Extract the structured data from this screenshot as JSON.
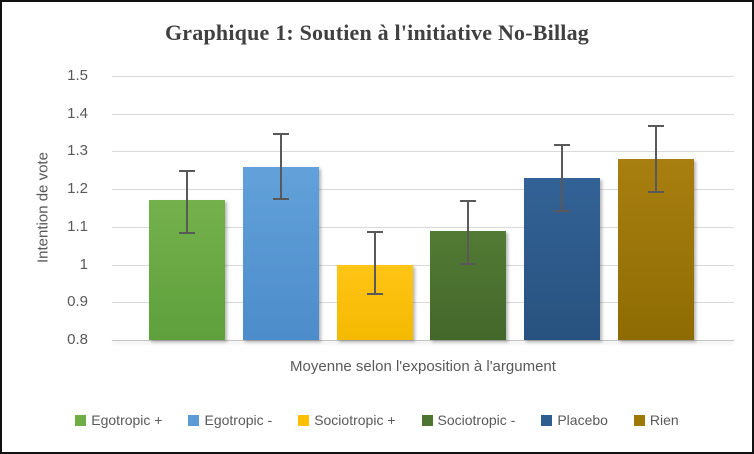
{
  "frame": {
    "background": "#FFFFFF",
    "border_color": "#111111"
  },
  "chart_data": {
    "type": "bar",
    "title": "Graphique 1: Soutien à l'initiative No-Billag",
    "xlabel": "Moyenne selon l'exposition à l'argument",
    "ylabel": "Intention de vote",
    "ylim": [
      0.8,
      1.5
    ],
    "ytick_labels": [
      "1.5",
      "1.4",
      "1.3",
      "1.2",
      "1.1",
      "1",
      "0.9",
      "0.8"
    ],
    "ytick_values": [
      1.5,
      1.4,
      1.3,
      1.2,
      1.1,
      1.0,
      0.9,
      0.8
    ],
    "grid": true,
    "legend_position": "bottom",
    "categories": [
      "Egotropic +",
      "Egotropic -",
      "Sociotropic +",
      "Sociotropic -",
      "Placebo",
      "Rien"
    ],
    "values": [
      1.17,
      1.26,
      1.0,
      1.09,
      1.23,
      1.28
    ],
    "error_low": [
      1.08,
      1.17,
      0.92,
      1.0,
      1.14,
      1.19
    ],
    "error_high": [
      1.25,
      1.35,
      1.09,
      1.17,
      1.32,
      1.37
    ],
    "bar_colors": [
      {
        "name": "egotropic-plus",
        "top": "#74B14C",
        "bottom": "#5FA03C",
        "legend": "#6FAD47"
      },
      {
        "name": "egotropic-minus",
        "top": "#62A1D9",
        "bottom": "#4C8CCA",
        "legend": "#5B9BD5"
      },
      {
        "name": "sociotropic-plus",
        "top": "#FFC516",
        "bottom": "#F4B900",
        "legend": "#FFC000"
      },
      {
        "name": "sociotropic-minus",
        "top": "#527B35",
        "bottom": "#44672A",
        "legend": "#4E7530"
      },
      {
        "name": "placebo",
        "top": "#336296",
        "bottom": "#27527F",
        "legend": "#2E5E90"
      },
      {
        "name": "rien",
        "top": "#A87F10",
        "bottom": "#8E6C03",
        "legend": "#9E7908"
      }
    ],
    "title_color": "#404040",
    "text_color": "#595959",
    "gridline_color": "#D9D9D9",
    "error_bar_color": "#595959"
  }
}
